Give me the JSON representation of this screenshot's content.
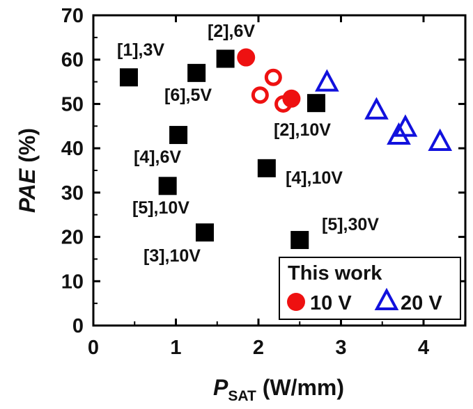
{
  "chart_data": {
    "type": "scatter",
    "xlim": [
      0,
      4.5
    ],
    "ylim": [
      0,
      70
    ],
    "x_ticks": [
      "0",
      "1",
      "2",
      "3",
      "4"
    ],
    "y_ticks": [
      "0",
      "10",
      "20",
      "30",
      "40",
      "50",
      "60",
      "70"
    ],
    "ylabel": {
      "symbol": "PAE",
      "unit": " (%)"
    },
    "xlabel": {
      "symbol": "P",
      "subscript": "SAT",
      "unit": " (W/mm)"
    },
    "references": [
      {
        "label": "[1],3V",
        "x": 0.43,
        "y": 56.0
      },
      {
        "label": "[6],5V",
        "x": 1.25,
        "y": 57.0
      },
      {
        "label": "[2],6V",
        "x": 1.6,
        "y": 60.2
      },
      {
        "label": "[2],10V",
        "x": 2.7,
        "y": 50.2
      },
      {
        "label": "[4],6V",
        "x": 1.03,
        "y": 43.0
      },
      {
        "label": "[4],10V",
        "x": 2.1,
        "y": 35.5
      },
      {
        "label": "[5],10V",
        "x": 0.9,
        "y": 31.5
      },
      {
        "label": "[3],10V",
        "x": 1.35,
        "y": 21.0
      },
      {
        "label": "[5],30V",
        "x": 2.5,
        "y": 19.3
      }
    ],
    "series": [
      {
        "name": "10 V",
        "color": "#ee1111",
        "filled": [
          {
            "x": 1.85,
            "y": 60.5
          },
          {
            "x": 2.4,
            "y": 51.2
          }
        ],
        "hollow": [
          {
            "x": 2.18,
            "y": 56.0
          },
          {
            "x": 2.02,
            "y": 52.0
          },
          {
            "x": 2.3,
            "y": 50.0
          }
        ]
      },
      {
        "name": "20 V",
        "color": "#1111dd",
        "points": [
          {
            "x": 2.83,
            "y": 55.0
          },
          {
            "x": 3.43,
            "y": 48.7
          },
          {
            "x": 3.78,
            "y": 44.8
          },
          {
            "x": 3.7,
            "y": 43.0
          },
          {
            "x": 4.2,
            "y": 41.6
          }
        ]
      }
    ],
    "legend": {
      "title": "This work",
      "position": "bottom-right"
    }
  }
}
